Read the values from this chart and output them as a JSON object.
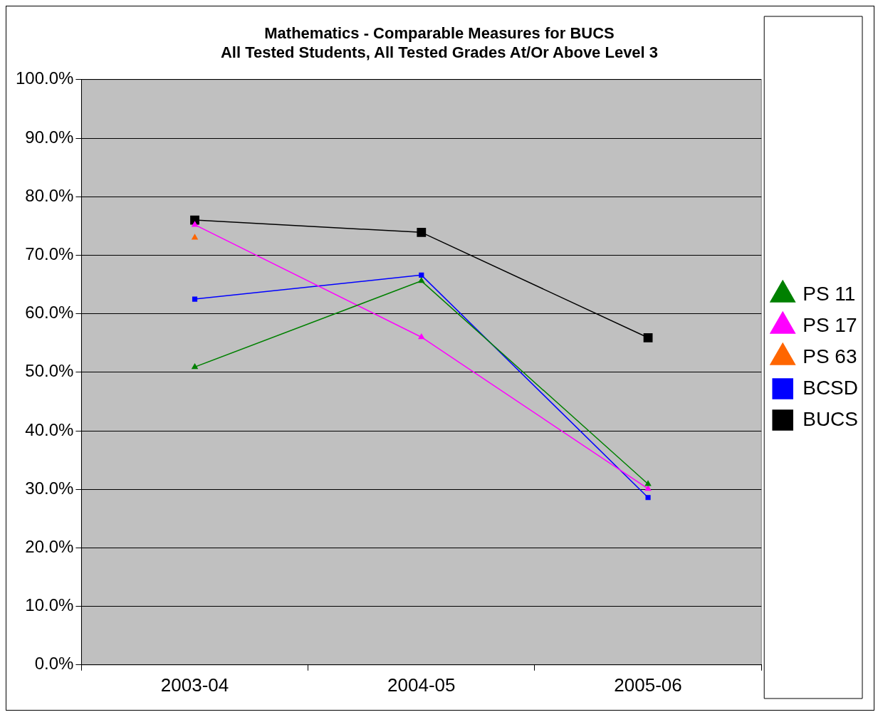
{
  "chart_data": {
    "type": "line",
    "title": "Mathematics - Comparable Measures for BUCS",
    "subtitle": "All Tested Students, All Tested Grades At/Or Above Level 3",
    "categories": [
      "2003-04",
      "2004-05",
      "2005-06"
    ],
    "series": [
      {
        "name": "PS 11",
        "color": "#008000",
        "marker": "triangle",
        "values": [
          50.9,
          65.6,
          30.9
        ]
      },
      {
        "name": "PS 17",
        "color": "#ff00ff",
        "marker": "triangle",
        "values": [
          75.2,
          56.0,
          30.1
        ]
      },
      {
        "name": "PS 63",
        "color": "#ff6600",
        "marker": "triangle",
        "values": [
          73.0,
          null,
          null
        ]
      },
      {
        "name": "BCSD",
        "color": "#0000ff",
        "marker": "square",
        "values": [
          62.5,
          66.6,
          28.6
        ]
      },
      {
        "name": "BUCS",
        "color": "#000000",
        "marker": "square",
        "values": [
          76.0,
          73.9,
          55.9
        ]
      }
    ],
    "ylim": [
      0,
      100
    ],
    "yticks": [
      {
        "value": 0,
        "label": "0.0%"
      },
      {
        "value": 10,
        "label": "10.0%"
      },
      {
        "value": 20,
        "label": "20.0%"
      },
      {
        "value": 30,
        "label": "30.0%"
      },
      {
        "value": 40,
        "label": "40.0%"
      },
      {
        "value": 50,
        "label": "50.0%"
      },
      {
        "value": 60,
        "label": "60.0%"
      },
      {
        "value": 70,
        "label": "70.0%"
      },
      {
        "value": 80,
        "label": "80.0%"
      },
      {
        "value": 90,
        "label": "90.0%"
      },
      {
        "value": 100,
        "label": "100.0%"
      }
    ],
    "grid": "y",
    "legend": "right",
    "line_style": "solid"
  }
}
